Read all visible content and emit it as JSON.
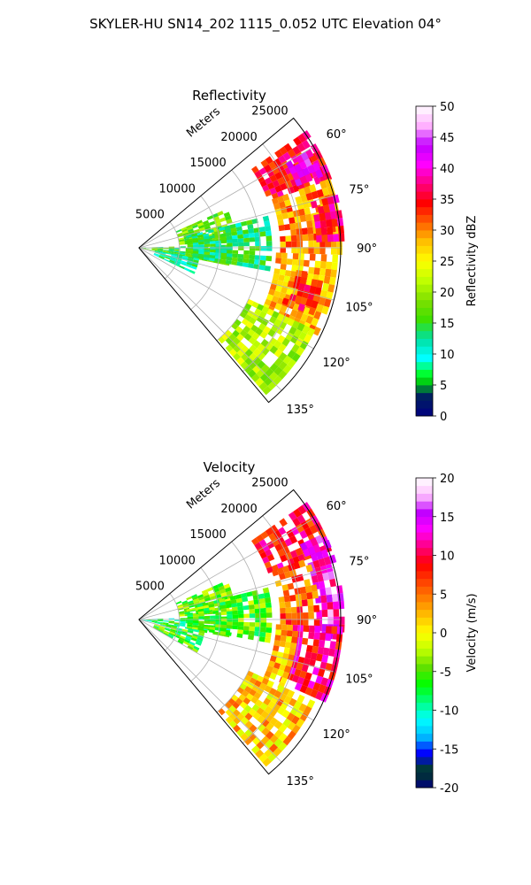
{
  "figure": {
    "suptitle": "SKYLER-HU  SN14_202  1115_0.052 UTC Elevation 04°"
  },
  "colors": {
    "ring": "#b0b0b0",
    "spoke": "#b0b0b0",
    "frame": "#000000"
  },
  "chart_data": [
    {
      "type": "polar-sector",
      "title": "Reflectivity",
      "range_label": "Meters",
      "range_ticks": [
        "5000",
        "10000",
        "15000",
        "20000",
        "25000"
      ],
      "range_max_m": 25000,
      "azimuth_ticks": [
        "60°",
        "75°",
        "90°",
        "105°",
        "120°",
        "135°"
      ],
      "azimuth_tick_values": [
        60,
        75,
        90,
        105,
        120,
        135
      ],
      "azimuth_range_deg": [
        50,
        140
      ],
      "colorbar": {
        "label": "Reflectivity dBZ",
        "vmin": 0,
        "vmax": 50,
        "ticks": [
          "0",
          "5",
          "10",
          "15",
          "20",
          "25",
          "30",
          "35",
          "40",
          "45",
          "50"
        ],
        "stops": [
          "#000080",
          "#002060",
          "#00ff00",
          "#00ffff",
          "#00e0a0",
          "#40e000",
          "#80e000",
          "#c0ff00",
          "#ffff00",
          "#ffc000",
          "#ff6000",
          "#ff0000",
          "#ff0080",
          "#ff00ff",
          "#c000ff",
          "#ffb0ff",
          "#ffffff"
        ]
      },
      "echo_regions": [
        {
          "az": [
            55,
            70
          ],
          "r": [
            17000,
            25000
          ],
          "value": 35
        },
        {
          "az": [
            60,
            68
          ],
          "r": [
            21000,
            24500
          ],
          "value": 42
        },
        {
          "az": [
            70,
            90
          ],
          "r": [
            17500,
            25000
          ],
          "value": 30
        },
        {
          "az": [
            75,
            88
          ],
          "r": [
            22000,
            25000
          ],
          "value": 36
        },
        {
          "az": [
            92,
            115
          ],
          "r": [
            17000,
            24500
          ],
          "value": 28
        },
        {
          "az": [
            98,
            110
          ],
          "r": [
            19000,
            23000
          ],
          "value": 34
        },
        {
          "az": [
            115,
            138
          ],
          "r": [
            15000,
            24000
          ],
          "value": 21
        },
        {
          "az": [
            88,
            100
          ],
          "r": [
            200,
            11000
          ],
          "value": 16
        },
        {
          "az": [
            100,
            115
          ],
          "r": [
            2000,
            7000
          ],
          "value": 12
        },
        {
          "az": [
            66,
            84
          ],
          "r": [
            5000,
            12000
          ],
          "value": 18
        },
        {
          "az": [
            76,
            100
          ],
          "r": [
            6000,
            16000
          ],
          "value": 14
        }
      ]
    },
    {
      "type": "polar-sector",
      "title": "Velocity",
      "range_label": "Meters",
      "range_ticks": [
        "5000",
        "10000",
        "15000",
        "20000",
        "25000"
      ],
      "range_max_m": 25000,
      "azimuth_ticks": [
        "60°",
        "75°",
        "90°",
        "105°",
        "120°",
        "135°"
      ],
      "azimuth_tick_values": [
        60,
        75,
        90,
        105,
        120,
        135
      ],
      "azimuth_range_deg": [
        50,
        140
      ],
      "colorbar": {
        "label": "Velocity (m/s)",
        "vmin": -20,
        "vmax": 20,
        "ticks": [
          "-20",
          "-15",
          "-10",
          "-5",
          "0",
          "5",
          "10",
          "15",
          "20"
        ],
        "stops": [
          "#000080",
          "#004020",
          "#0000ff",
          "#00c0ff",
          "#00ffff",
          "#00ff80",
          "#00ff00",
          "#60e000",
          "#c0ff00",
          "#ffff00",
          "#ffc000",
          "#ff8000",
          "#ff4000",
          "#ff0000",
          "#ff0080",
          "#ff00ff",
          "#c000ff",
          "#ffc0ff",
          "#ffffff"
        ]
      },
      "echo_regions": [
        {
          "az": [
            55,
            70
          ],
          "r": [
            17000,
            25000
          ],
          "value": 9
        },
        {
          "az": [
            65,
            95
          ],
          "r": [
            22000,
            25000
          ],
          "value": 14
        },
        {
          "az": [
            70,
            90
          ],
          "r": [
            17500,
            22000
          ],
          "value": 6
        },
        {
          "az": [
            92,
            112
          ],
          "r": [
            19000,
            25000
          ],
          "value": 10
        },
        {
          "az": [
            92,
            115
          ],
          "r": [
            17000,
            19500
          ],
          "value": 3
        },
        {
          "az": [
            115,
            138
          ],
          "r": [
            15000,
            24000
          ],
          "value": 2
        },
        {
          "az": [
            88,
            100
          ],
          "r": [
            200,
            11000
          ],
          "value": -8
        },
        {
          "az": [
            66,
            84
          ],
          "r": [
            5000,
            12000
          ],
          "value": -4
        },
        {
          "az": [
            76,
            100
          ],
          "r": [
            6000,
            16000
          ],
          "value": -5
        },
        {
          "az": [
            100,
            118
          ],
          "r": [
            2000,
            8000
          ],
          "value": -6
        }
      ]
    }
  ]
}
